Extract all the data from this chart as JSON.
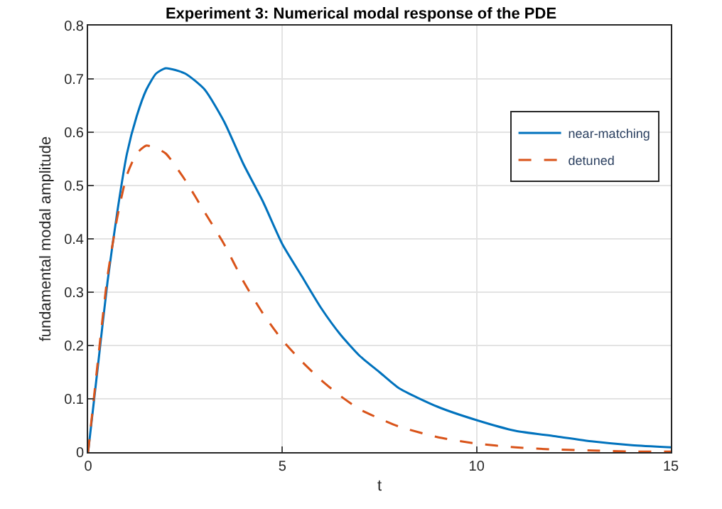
{
  "chart_data": {
    "type": "line",
    "title": "Experiment 3: Numerical modal response of the PDE",
    "xlabel": "t",
    "ylabel": "fundamental modal amplitude",
    "x": [
      0,
      0.25,
      0.5,
      0.75,
      1,
      1.25,
      1.5,
      1.75,
      2,
      2.5,
      3,
      3.5,
      4,
      4.5,
      5,
      5.5,
      6,
      6.5,
      7,
      7.5,
      8,
      9,
      10,
      11,
      12,
      13,
      14,
      15
    ],
    "series": [
      {
        "name": "near-matching",
        "color": "#0072bd",
        "line_style": "solid",
        "values": [
          0,
          0.16,
          0.32,
          0.45,
          0.56,
          0.63,
          0.68,
          0.71,
          0.72,
          0.71,
          0.68,
          0.62,
          0.54,
          0.47,
          0.39,
          0.33,
          0.27,
          0.22,
          0.18,
          0.15,
          0.12,
          0.085,
          0.06,
          0.04,
          0.03,
          0.02,
          0.013,
          0.009
        ]
      },
      {
        "name": "detuned",
        "color": "#d95319",
        "line_style": "dashed",
        "values": [
          0,
          0.17,
          0.33,
          0.44,
          0.52,
          0.56,
          0.575,
          0.57,
          0.56,
          0.51,
          0.45,
          0.39,
          0.32,
          0.26,
          0.21,
          0.17,
          0.135,
          0.105,
          0.08,
          0.063,
          0.048,
          0.028,
          0.016,
          0.009,
          0.005,
          0.003,
          0.001,
          0.001
        ]
      }
    ],
    "xlim": [
      0,
      15
    ],
    "xticks": [
      0,
      5,
      10,
      15
    ],
    "ylim": [
      0,
      0.8
    ],
    "yticks": [
      0,
      0.1,
      0.2,
      0.3,
      0.4,
      0.5,
      0.6,
      0.7,
      0.8
    ],
    "grid": true,
    "legend": "top right",
    "marker": "none"
  }
}
